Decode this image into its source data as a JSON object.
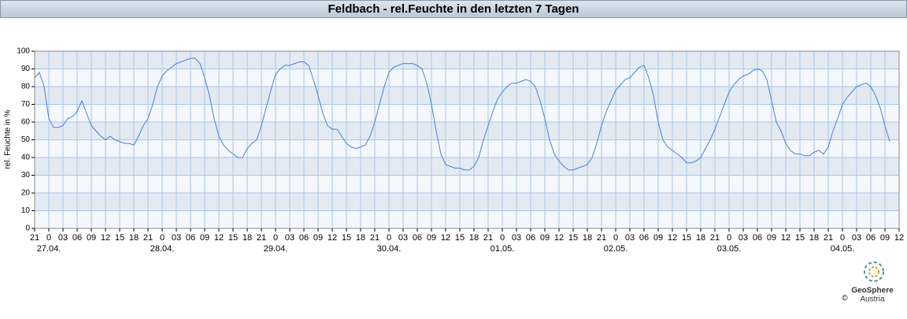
{
  "chart_data": {
    "type": "line",
    "title": "Feldbach - rel.Feuchte in den letzten 7 Tagen",
    "y_label": "rel. Feuchte in %",
    "color": "#4a7fd8",
    "grid": true,
    "ylim": [
      0,
      100
    ],
    "yticks": [
      0,
      10,
      20,
      30,
      40,
      50,
      60,
      70,
      80,
      90,
      100
    ],
    "xlim": [
      0,
      183
    ],
    "xticks": [
      {
        "value": 0,
        "label": "21"
      },
      {
        "value": 3,
        "label": "0"
      },
      {
        "value": 6,
        "label": "03"
      },
      {
        "value": 9,
        "label": "06"
      },
      {
        "value": 12,
        "label": "09"
      },
      {
        "value": 15,
        "label": "12"
      },
      {
        "value": 18,
        "label": "15"
      },
      {
        "value": 21,
        "label": "18"
      },
      {
        "value": 24,
        "label": "21"
      },
      {
        "value": 27,
        "label": "0"
      },
      {
        "value": 30,
        "label": "03"
      },
      {
        "value": 33,
        "label": "06"
      },
      {
        "value": 36,
        "label": "09"
      },
      {
        "value": 39,
        "label": "12"
      },
      {
        "value": 42,
        "label": "15"
      },
      {
        "value": 45,
        "label": "18"
      },
      {
        "value": 48,
        "label": "21"
      },
      {
        "value": 51,
        "label": "0"
      },
      {
        "value": 54,
        "label": "03"
      },
      {
        "value": 57,
        "label": "06"
      },
      {
        "value": 60,
        "label": "09"
      },
      {
        "value": 63,
        "label": "12"
      },
      {
        "value": 66,
        "label": "15"
      },
      {
        "value": 69,
        "label": "18"
      },
      {
        "value": 72,
        "label": "21"
      },
      {
        "value": 75,
        "label": "0"
      },
      {
        "value": 78,
        "label": "03"
      },
      {
        "value": 81,
        "label": "06"
      },
      {
        "value": 84,
        "label": "09"
      },
      {
        "value": 87,
        "label": "12"
      },
      {
        "value": 90,
        "label": "15"
      },
      {
        "value": 93,
        "label": "18"
      },
      {
        "value": 96,
        "label": "21"
      },
      {
        "value": 99,
        "label": "0"
      },
      {
        "value": 102,
        "label": "03"
      },
      {
        "value": 105,
        "label": "06"
      },
      {
        "value": 108,
        "label": "09"
      },
      {
        "value": 111,
        "label": "12"
      },
      {
        "value": 114,
        "label": "15"
      },
      {
        "value": 117,
        "label": "18"
      },
      {
        "value": 120,
        "label": "21"
      },
      {
        "value": 123,
        "label": "0"
      },
      {
        "value": 126,
        "label": "03"
      },
      {
        "value": 129,
        "label": "06"
      },
      {
        "value": 132,
        "label": "09"
      },
      {
        "value": 135,
        "label": "12"
      },
      {
        "value": 138,
        "label": "15"
      },
      {
        "value": 141,
        "label": "18"
      },
      {
        "value": 144,
        "label": "21"
      },
      {
        "value": 147,
        "label": "0"
      },
      {
        "value": 150,
        "label": "03"
      },
      {
        "value": 153,
        "label": "06"
      },
      {
        "value": 156,
        "label": "09"
      },
      {
        "value": 159,
        "label": "12"
      },
      {
        "value": 162,
        "label": "15"
      },
      {
        "value": 165,
        "label": "18"
      },
      {
        "value": 168,
        "label": "21"
      },
      {
        "value": 171,
        "label": "0"
      },
      {
        "value": 174,
        "label": "03"
      },
      {
        "value": 177,
        "label": "06"
      },
      {
        "value": 180,
        "label": "09"
      },
      {
        "value": 183,
        "label": "12"
      }
    ],
    "date_labels": [
      {
        "value": 3,
        "label": "27.04."
      },
      {
        "value": 27,
        "label": "28.04."
      },
      {
        "value": 51,
        "label": "29.04."
      },
      {
        "value": 75,
        "label": "30.04."
      },
      {
        "value": 99,
        "label": "01.05."
      },
      {
        "value": 123,
        "label": "02.05."
      },
      {
        "value": 147,
        "label": "03.05."
      },
      {
        "value": 171,
        "label": "04.05."
      }
    ],
    "x": [
      0,
      1,
      2,
      3,
      4,
      5,
      6,
      7,
      8,
      9,
      10,
      11,
      12,
      13,
      14,
      15,
      16,
      17,
      18,
      19,
      20,
      21,
      22,
      23,
      24,
      25,
      26,
      27,
      28,
      29,
      30,
      31,
      32,
      33,
      34,
      35,
      36,
      37,
      38,
      39,
      40,
      41,
      42,
      43,
      44,
      45,
      46,
      47,
      48,
      49,
      50,
      51,
      52,
      53,
      54,
      55,
      56,
      57,
      58,
      59,
      60,
      61,
      62,
      63,
      64,
      65,
      66,
      67,
      68,
      69,
      70,
      71,
      72,
      73,
      74,
      75,
      76,
      77,
      78,
      79,
      80,
      81,
      82,
      83,
      84,
      85,
      86,
      87,
      88,
      89,
      90,
      91,
      92,
      93,
      94,
      95,
      96,
      97,
      98,
      99,
      100,
      101,
      102,
      103,
      104,
      105,
      106,
      107,
      108,
      109,
      110,
      111,
      112,
      113,
      114,
      115,
      116,
      117,
      118,
      119,
      120,
      121,
      122,
      123,
      124,
      125,
      126,
      127,
      128,
      129,
      130,
      131,
      132,
      133,
      134,
      135,
      136,
      137,
      138,
      139,
      140,
      141,
      142,
      143,
      144,
      145,
      146,
      147,
      148,
      149,
      150,
      151,
      152,
      153,
      154,
      155,
      156,
      157,
      158,
      159,
      160,
      161,
      162,
      163,
      164,
      165,
      166,
      167,
      168,
      169,
      170,
      171,
      172,
      173,
      174,
      175,
      176,
      177,
      178,
      179,
      180,
      181
    ],
    "values": [
      85,
      88,
      80,
      62,
      57,
      57,
      58,
      62,
      63,
      66,
      72,
      65,
      58,
      55,
      52,
      50,
      52,
      50,
      49,
      48,
      48,
      47,
      52,
      58,
      62,
      70,
      80,
      86,
      89,
      91,
      93,
      94,
      95,
      96,
      96,
      93,
      85,
      75,
      62,
      52,
      47,
      44,
      42,
      40,
      40,
      45,
      48,
      50,
      58,
      68,
      78,
      87,
      90,
      92,
      92,
      93,
      94,
      94,
      92,
      84,
      75,
      65,
      58,
      56,
      56,
      52,
      48,
      46,
      45,
      46,
      47,
      52,
      60,
      70,
      80,
      88,
      91,
      92,
      93,
      93,
      93,
      92,
      90,
      82,
      70,
      55,
      42,
      36,
      35,
      34,
      34,
      33,
      33,
      35,
      40,
      50,
      58,
      66,
      73,
      77,
      80,
      82,
      82,
      83,
      84,
      83,
      80,
      72,
      62,
      50,
      42,
      38,
      35,
      33,
      33,
      34,
      35,
      36,
      40,
      48,
      58,
      66,
      72,
      78,
      81,
      84,
      85,
      88,
      91,
      92,
      85,
      75,
      60,
      50,
      46,
      44,
      42,
      40,
      37,
      37,
      38,
      40,
      45,
      50,
      56,
      63,
      70,
      77,
      81,
      84,
      86,
      87,
      89,
      90,
      89,
      84,
      72,
      60,
      55,
      48,
      44,
      42,
      42,
      41,
      41,
      43,
      44,
      42,
      46,
      55,
      62,
      70,
      74,
      77,
      80,
      81,
      82,
      80,
      75,
      68,
      58,
      49
    ],
    "logo": [
      "GeoSphere",
      "Austria"
    ],
    "copyright": "©"
  }
}
